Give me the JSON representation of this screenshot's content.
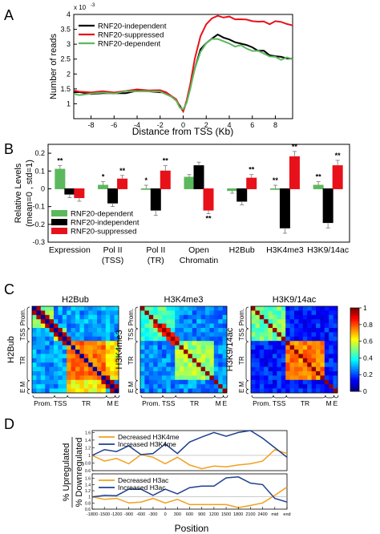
{
  "figure": {
    "panel_labels": [
      "A",
      "B",
      "C",
      "D"
    ]
  },
  "chart_data": [
    {
      "panel": "A",
      "type": "line",
      "ylabel": "Number of reads",
      "xlabel": "Distance from TSS (Kb)",
      "y_exponent": "x 10",
      "y_exponent_power": "-3",
      "xlim": [
        -9.5,
        9.5
      ],
      "ylim": [
        0.5,
        4.0
      ],
      "x_ticks": [
        -8,
        -6,
        -4,
        -2,
        0,
        2,
        4,
        6,
        8
      ],
      "y_ticks": [
        1,
        1.5,
        2,
        2.5,
        3,
        3.5,
        4
      ],
      "x_tick_labels": [
        "-8",
        "-6",
        "-4",
        "-2",
        "0",
        "2",
        "4",
        "6",
        "8"
      ],
      "y_tick_labels": [
        "1",
        "1.5",
        "2",
        "2.5",
        "3",
        "3.5",
        "4"
      ],
      "legend_position": "top-left",
      "series": [
        {
          "name": "RNF20-independent",
          "color": "#000000",
          "x": [
            -9.5,
            -9,
            -8,
            -7,
            -6,
            -5,
            -4,
            -3,
            -2,
            -1.5,
            -1,
            -0.6,
            -0.3,
            0,
            0.3,
            0.6,
            1,
            1.5,
            2,
            2.5,
            3,
            3.5,
            4,
            4.5,
            5,
            5.5,
            6,
            6.5,
            7,
            7.5,
            8,
            8.5,
            9,
            9.5
          ],
          "values": [
            1.38,
            1.37,
            1.36,
            1.34,
            1.35,
            1.38,
            1.41,
            1.43,
            1.4,
            1.36,
            1.26,
            1.1,
            0.92,
            0.78,
            1.05,
            1.55,
            2.2,
            2.8,
            3.05,
            3.2,
            3.3,
            3.25,
            3.15,
            3.05,
            3.05,
            2.95,
            2.9,
            2.8,
            2.75,
            2.65,
            2.6,
            2.55,
            2.55,
            2.5
          ]
        },
        {
          "name": "RNF20-suppressed",
          "color": "#e8111a",
          "x": [
            -9.5,
            -9,
            -8,
            -7,
            -6,
            -5,
            -4,
            -3,
            -2,
            -1.5,
            -1,
            -0.6,
            -0.3,
            0,
            0.3,
            0.6,
            1,
            1.5,
            2,
            2.5,
            3,
            3.5,
            4,
            4.5,
            5,
            5.5,
            6,
            6.5,
            7,
            7.5,
            8,
            8.5,
            9,
            9.5
          ],
          "values": [
            1.42,
            1.41,
            1.4,
            1.39,
            1.4,
            1.43,
            1.46,
            1.48,
            1.44,
            1.38,
            1.28,
            1.12,
            0.92,
            0.76,
            1.08,
            1.65,
            2.5,
            3.25,
            3.7,
            3.85,
            3.95,
            3.92,
            3.9,
            3.85,
            3.85,
            3.8,
            3.8,
            3.75,
            3.75,
            3.7,
            3.75,
            3.75,
            3.7,
            3.6
          ]
        },
        {
          "name": "RNF20-dependent",
          "color": "#5cb85c",
          "x": [
            -9.5,
            -9,
            -8,
            -7,
            -6,
            -5,
            -4,
            -3,
            -2,
            -1.5,
            -1,
            -0.6,
            -0.3,
            0,
            0.3,
            0.6,
            1,
            1.5,
            2,
            2.5,
            3,
            3.5,
            4,
            4.5,
            5,
            5.5,
            6,
            6.5,
            7,
            7.5,
            8,
            8.5,
            9,
            9.5
          ],
          "values": [
            1.3,
            1.32,
            1.33,
            1.36,
            1.37,
            1.4,
            1.42,
            1.44,
            1.38,
            1.34,
            1.24,
            1.08,
            0.9,
            0.8,
            1.02,
            1.5,
            2.15,
            2.75,
            3.05,
            3.15,
            3.2,
            3.1,
            3.0,
            2.95,
            2.95,
            2.85,
            2.8,
            2.75,
            2.7,
            2.6,
            2.55,
            2.5,
            2.55,
            2.48
          ]
        }
      ]
    },
    {
      "panel": "B",
      "type": "bar",
      "ylabel_line1": "Relative Levels",
      "ylabel_line2": "(mean=0 , std=1)",
      "ylim": [
        -0.3,
        0.25
      ],
      "y_ticks": [
        -0.3,
        -0.2,
        -0.1,
        0,
        0.1,
        0.2
      ],
      "y_tick_labels": [
        "-0.3",
        "-0.2",
        "-0.1",
        "0",
        "0.1",
        "0.2"
      ],
      "categories": [
        "Expression",
        "Pol II (TSS)",
        "Pol II (TR)",
        "Open Chromatin",
        "H2Bub",
        "H3K4me3",
        "H3K9/14ac"
      ],
      "category_label_lines": [
        [
          "Expression"
        ],
        [
          "Pol II",
          "(TSS)"
        ],
        [
          "Pol II",
          "(TR)"
        ],
        [
          "Open",
          "Chromatin"
        ],
        [
          "H2Bub"
        ],
        [
          "H3K4me3"
        ],
        [
          "H3K9/14ac"
        ]
      ],
      "legend_position": "bottom-left",
      "series": [
        {
          "name": "RNF20-dependent",
          "color": "#5cb85c",
          "values": [
            0.11,
            0.02,
            0.0,
            0.065,
            -0.01,
            0.0,
            0.02
          ],
          "errors": [
            0.02,
            0.02,
            0.02,
            0.015,
            0.015,
            0.02,
            0.02
          ],
          "stars": [
            "**",
            "*",
            "*",
            "",
            "",
            "**",
            "**"
          ]
        },
        {
          "name": "RNF20-independent",
          "color": "#000000",
          "values": [
            -0.03,
            -0.08,
            -0.12,
            0.13,
            -0.07,
            -0.22,
            -0.19
          ],
          "errors": [
            0.02,
            0.02,
            0.03,
            0.02,
            0.02,
            0.03,
            0.03
          ],
          "stars": [
            "",
            "",
            "",
            "",
            "",
            "",
            ""
          ]
        },
        {
          "name": "RNF20-suppressed",
          "color": "#e8111a",
          "values": [
            -0.05,
            0.055,
            0.1,
            -0.12,
            0.06,
            0.18,
            0.13
          ],
          "errors": [
            0.02,
            0.02,
            0.03,
            0.02,
            0.02,
            0.03,
            0.03
          ],
          "stars": [
            "",
            "**",
            "**",
            "**",
            "**",
            "**",
            "**"
          ]
        }
      ]
    },
    {
      "panel": "C",
      "type": "heatmap",
      "colormap": "jet",
      "colorbar_range": [
        0,
        1
      ],
      "colorbar_ticks": [
        0,
        0.2,
        0.4,
        0.6,
        0.8,
        1
      ],
      "colorbar_tick_labels": [
        "0",
        "0.2",
        "0.4",
        "0.6",
        "0.8",
        "1"
      ],
      "row_labels": [
        "Prom.",
        "TSS",
        "TR",
        "M",
        "E"
      ],
      "col_labels": [
        "Prom.",
        "TSS",
        "TR",
        "M",
        "E"
      ],
      "heatmaps": [
        {
          "title": "H2Bub",
          "ylabel": "H2Bub"
        },
        {
          "title": "H3K4me3",
          "ylabel": "H3K4me3"
        },
        {
          "title": "H3K9/14ac",
          "ylabel": "H3K9/14ac"
        }
      ]
    },
    {
      "panel": "D",
      "type": "line",
      "ylabel_top": "% Upregulated",
      "ylabel_bottom": "% Downregulated",
      "xlabel": "Position",
      "x_tick_labels": [
        "-1800",
        "-1500",
        "-1200",
        "-900",
        "-600",
        "-300",
        "0",
        "300",
        "600",
        "900",
        "1200",
        "1500",
        "1800",
        "2100",
        "2400",
        "mid",
        "end"
      ],
      "subplots": [
        {
          "ylim": [
            0.6,
            1.65
          ],
          "y_ticks": [
            0.6,
            0.8,
            1.0,
            1.2,
            1.4,
            1.6
          ],
          "y_tick_labels": [
            "0.6",
            "0.8",
            "1",
            "1.2",
            "1.4",
            "1.6"
          ],
          "legend_position": "top-left",
          "series": [
            {
              "name": "Decreased H3K4me",
              "color": "#f0a020",
              "values": [
                1.0,
                0.85,
                0.92,
                0.78,
                1.02,
                0.95,
                0.78,
                0.95,
                0.75,
                0.65,
                0.72,
                0.7,
                0.75,
                0.78,
                0.85,
                1.15,
                1.05
              ]
            },
            {
              "name": "Increased H3K4me",
              "color": "#1f3f8f",
              "values": [
                1.0,
                1.15,
                1.1,
                1.25,
                1.02,
                1.05,
                1.3,
                1.05,
                1.35,
                1.48,
                1.6,
                1.5,
                1.6,
                1.65,
                1.45,
                1.2,
                0.95
              ]
            }
          ]
        },
        {
          "ylim": [
            0.6,
            1.75
          ],
          "y_ticks": [
            0.6,
            0.8,
            1.0,
            1.2,
            1.4,
            1.6
          ],
          "y_tick_labels": [
            "0.6",
            "0.8",
            "1",
            "1.2",
            "1.4",
            "1.6"
          ],
          "legend_position": "top-left",
          "series": [
            {
              "name": "Decreased H3ac",
              "color": "#f0a020",
              "values": [
                1.0,
                0.92,
                0.95,
                0.8,
                0.83,
                0.95,
                0.8,
                0.92,
                0.75,
                0.75,
                0.75,
                0.75,
                0.65,
                0.72,
                0.8,
                1.05,
                1.32
              ]
            },
            {
              "name": "Increased H3ac",
              "color": "#1f3f8f",
              "values": [
                1.0,
                1.05,
                1.04,
                1.25,
                1.25,
                1.05,
                1.25,
                1.1,
                1.3,
                1.35,
                1.35,
                1.62,
                1.65,
                1.45,
                1.4,
                0.95,
                0.83
              ]
            }
          ]
        }
      ]
    }
  ]
}
